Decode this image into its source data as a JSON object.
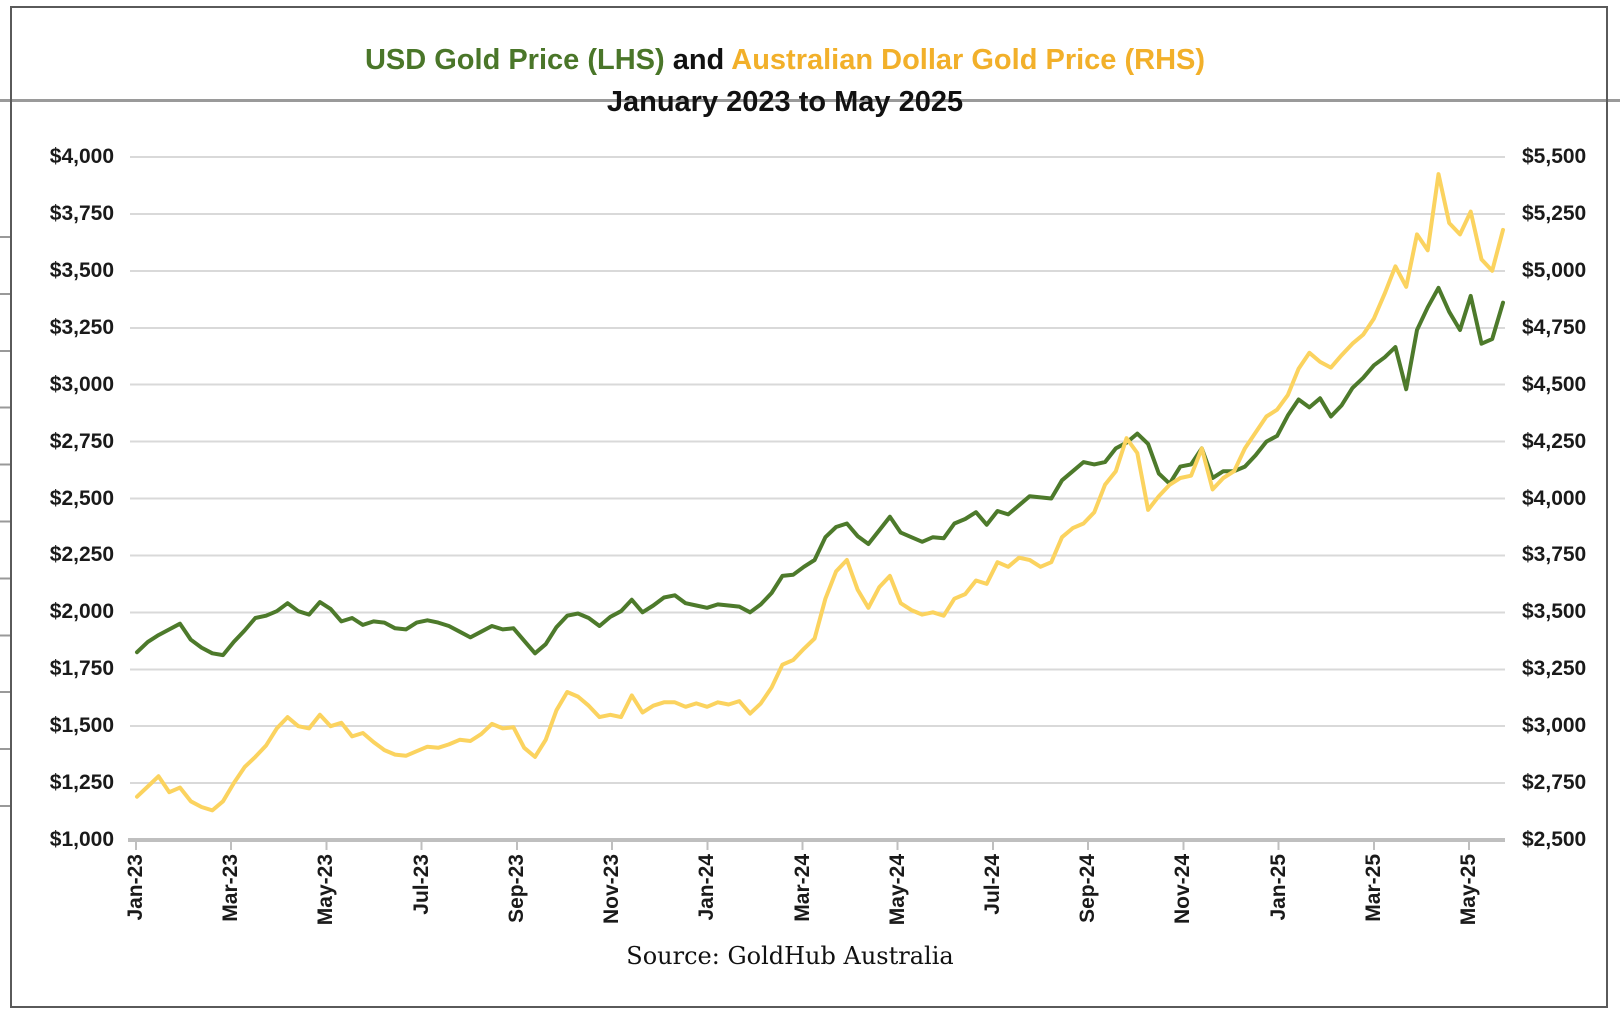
{
  "page": {
    "title_part_usd": "USD Gold Price (LHS)",
    "title_part_and": " and ",
    "title_part_aud": "Australian Dollar Gold Price (RHS)",
    "subtitle": "January 2023 to May 2025",
    "source": "Source: GoldHub Australia"
  },
  "colors": {
    "title_green": "#4a7629",
    "title_gold": "#f2b02a",
    "title_black": "#111111",
    "usd_line": "#4d7a2b",
    "aud_line": "#fbd35f",
    "gridline": "#d9d9d9",
    "axis_line": "#bfbfbf",
    "border_tick": "#999999",
    "text": "#1a1a1a"
  },
  "chart_data": {
    "type": "line",
    "title": "USD Gold Price (LHS) and Australian Dollar Gold Price (RHS)",
    "subtitle": "January 2023 to May 2025",
    "source": "Source: GoldHub Australia",
    "grid": true,
    "legend_position": "in-title",
    "x_tick_labels": [
      "Jan-23",
      "Mar-23",
      "May-23",
      "Jul-23",
      "Sep-23",
      "Nov-23",
      "Jan-24",
      "Mar-24",
      "May-24",
      "Jul-24",
      "Sep-24",
      "Nov-24",
      "Jan-25",
      "Mar-25",
      "May-25"
    ],
    "lhs_axis": {
      "label": "USD Gold Price",
      "min": 1000,
      "max": 4000,
      "step": 250,
      "tick_labels": [
        "$4,000",
        "$3,750",
        "$3,500",
        "$3,250",
        "$3,000",
        "$2,750",
        "$2,500",
        "$2,250",
        "$2,000",
        "$1,750",
        "$1,500",
        "$1,250",
        "$1,000"
      ]
    },
    "rhs_axis": {
      "label": "Australian Dollar Gold Price",
      "min": 2500,
      "max": 5500,
      "step": 250,
      "tick_labels": [
        "$5,500",
        "$5,250",
        "$5,000",
        "$4,750",
        "$4,500",
        "$4,250",
        "$4,000",
        "$3,750",
        "$3,500",
        "$3,250",
        "$3,000",
        "$2,750",
        "$2,500"
      ]
    },
    "series": [
      {
        "name": "USD Gold Price",
        "axis": "lhs",
        "color": "#4d7a2b",
        "values": [
          1825,
          1870,
          1900,
          1925,
          1950,
          1880,
          1845,
          1820,
          1812,
          1870,
          1920,
          1975,
          1985,
          2005,
          2040,
          2005,
          1990,
          2045,
          2015,
          1960,
          1975,
          1945,
          1960,
          1955,
          1930,
          1925,
          1955,
          1965,
          1955,
          1940,
          1915,
          1890,
          1915,
          1940,
          1925,
          1930,
          1875,
          1820,
          1860,
          1935,
          1985,
          1995,
          1975,
          1940,
          1980,
          2005,
          2055,
          2000,
          2030,
          2065,
          2075,
          2040,
          2030,
          2020,
          2035,
          2030,
          2025,
          2000,
          2035,
          2085,
          2160,
          2165,
          2200,
          2230,
          2330,
          2375,
          2390,
          2335,
          2300,
          2360,
          2420,
          2350,
          2330,
          2310,
          2330,
          2325,
          2390,
          2410,
          2440,
          2385,
          2445,
          2430,
          2470,
          2510,
          2505,
          2500,
          2580,
          2620,
          2660,
          2650,
          2660,
          2720,
          2745,
          2785,
          2740,
          2610,
          2565,
          2640,
          2650,
          2720,
          2590,
          2620,
          2620,
          2640,
          2690,
          2750,
          2775,
          2865,
          2935,
          2900,
          2940,
          2860,
          2910,
          2985,
          3030,
          3085,
          3120,
          3165,
          2980,
          3240,
          3340,
          3425,
          3320,
          3240,
          3390,
          3180,
          3200,
          3360
        ]
      },
      {
        "name": "Australian Dollar Gold Price",
        "axis": "rhs",
        "color": "#fbd35f",
        "values": [
          2690,
          2735,
          2780,
          2710,
          2730,
          2670,
          2645,
          2630,
          2670,
          2750,
          2820,
          2865,
          2915,
          2990,
          3040,
          3000,
          2990,
          3050,
          3000,
          3015,
          2955,
          2970,
          2930,
          2895,
          2875,
          2870,
          2890,
          2910,
          2905,
          2920,
          2940,
          2935,
          2965,
          3010,
          2990,
          2995,
          2905,
          2865,
          2940,
          3070,
          3150,
          3130,
          3090,
          3040,
          3050,
          3040,
          3135,
          3060,
          3090,
          3105,
          3105,
          3085,
          3100,
          3085,
          3105,
          3095,
          3110,
          3055,
          3100,
          3170,
          3270,
          3290,
          3340,
          3385,
          3560,
          3680,
          3730,
          3600,
          3520,
          3610,
          3660,
          3540,
          3510,
          3490,
          3500,
          3485,
          3560,
          3580,
          3640,
          3625,
          3720,
          3700,
          3740,
          3730,
          3700,
          3720,
          3830,
          3870,
          3890,
          3940,
          4060,
          4120,
          4265,
          4200,
          3950,
          4010,
          4060,
          4090,
          4100,
          4220,
          4040,
          4090,
          4120,
          4220,
          4290,
          4360,
          4390,
          4455,
          4570,
          4640,
          4600,
          4575,
          4630,
          4680,
          4720,
          4790,
          4900,
          5020,
          4930,
          5160,
          5090,
          5425,
          5210,
          5160,
          5260,
          5050,
          5000,
          5180
        ]
      }
    ]
  }
}
